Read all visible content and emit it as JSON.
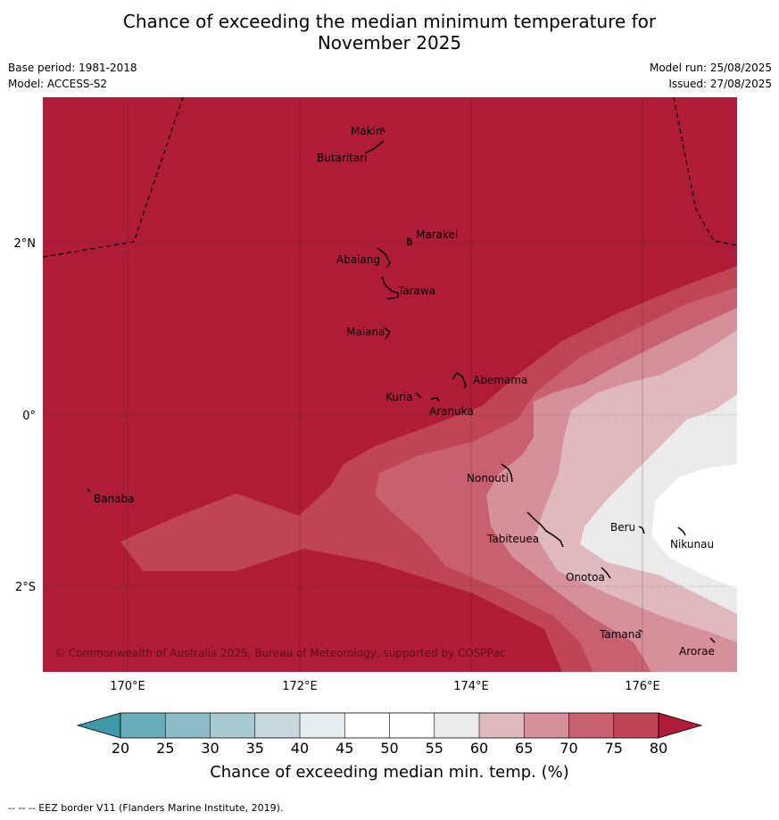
{
  "title_line1": "Chance of exceeding the median minimum temperature for",
  "title_line2": "November 2025",
  "base_period": "Base period: 1981-2018",
  "model": "Model: ACCESS-S2",
  "model_run": "Model run: 25/08/2025",
  "issued": "Issued: 27/08/2025",
  "copyright": "© Commonwealth of Australia 2025, Bureau of Meteorology, supported by COSPPac",
  "footer": "--  --  -- EEZ border V11 (Flanders Marine Institute, 2019).",
  "axes": {
    "lon_ticks": [
      "170°E",
      "172°E",
      "174°E",
      "176°E"
    ],
    "lat_ticks": [
      "2°N",
      "0°",
      "2°S"
    ]
  },
  "islands": [
    "Makin",
    "Butaritari",
    "Marakei",
    "Abaiang",
    "Tarawa",
    "Maiana",
    "Abemama",
    "Kuria",
    "Aranuka",
    "Nonouti",
    "Banaba",
    "Tabiteuea",
    "Beru",
    "Nikunau",
    "Onotoa",
    "Tamana",
    "Arorae"
  ],
  "colorbar": {
    "label": "Chance of exceeding median min. temp. (%)",
    "ticks": [
      "20",
      "25",
      "30",
      "35",
      "40",
      "45",
      "50",
      "55",
      "60",
      "65",
      "70",
      "75",
      "80"
    ],
    "colors": {
      "below_20": "#3f9aa8",
      "20-25": "#6aadba",
      "25-30": "#8cbcc7",
      "30-35": "#a9c9d0",
      "35-40": "#c8d9de",
      "40-45": "#e6edf0",
      "45-50": "#ffffff",
      "50-55": "#ffffff",
      "55-60": "#ecebec",
      "60-65": "#e0b9bf",
      "65-70": "#d6909a",
      "70-75": "#c8606f",
      "75-80": "#bf4455",
      "above_80": "#b01c38"
    }
  }
}
